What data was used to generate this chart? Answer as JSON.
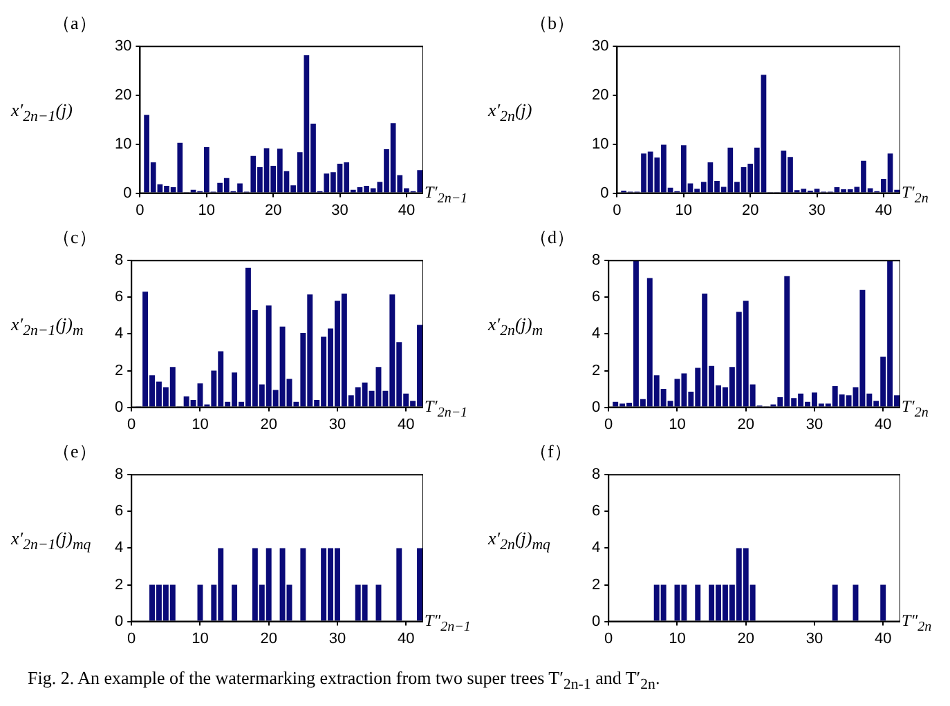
{
  "chart_data": [
    {
      "type": "bar",
      "title": "（a）",
      "ylabel": "x′$_{2n−1}$(j)",
      "xlabel": "T′$_{2n−1}$",
      "x": [
        1,
        2,
        3,
        4,
        5,
        6,
        7,
        8,
        9,
        10,
        11,
        12,
        13,
        14,
        15,
        16,
        17,
        18,
        19,
        20,
        21,
        22,
        23,
        24,
        25,
        26,
        27,
        28,
        29,
        30,
        31,
        32,
        33,
        34,
        35,
        36,
        37,
        38,
        39,
        40,
        41,
        42
      ],
      "series": [
        {
          "color": "#0a0a78",
          "values": [
            16,
            6.3,
            1.8,
            1.5,
            1.2,
            10.3,
            0.2,
            0.7,
            0.4,
            9.4,
            0.3,
            2.1,
            3.1,
            0.4,
            2.0,
            0.3,
            7.6,
            5.3,
            9.2,
            5.6,
            9.1,
            4.5,
            1.6,
            8.4,
            28.2,
            14.2,
            0.4,
            4.0,
            4.3,
            6.0,
            6.3,
            0.7,
            1.2,
            1.5,
            1.0,
            2.3,
            9.0,
            14.3,
            3.7,
            1.0,
            0.4,
            4.7
          ]
        }
      ],
      "xlim": [
        0,
        42.5
      ],
      "xticks": [
        0,
        10,
        20,
        30,
        40
      ],
      "ylim": [
        0,
        30
      ],
      "yticks": [
        0,
        10,
        20,
        30
      ]
    },
    {
      "type": "bar",
      "title": "（b）",
      "ylabel": "x′$_{2n}$(j)",
      "xlabel": "T′$_{2n}$",
      "x": [
        1,
        2,
        3,
        4,
        5,
        6,
        7,
        8,
        9,
        10,
        11,
        12,
        13,
        14,
        15,
        16,
        17,
        18,
        19,
        20,
        21,
        22,
        23,
        24,
        25,
        26,
        27,
        28,
        29,
        30,
        31,
        32,
        33,
        34,
        35,
        36,
        37,
        38,
        39,
        40,
        41,
        42
      ],
      "series": [
        {
          "color": "#0a0a78",
          "values": [
            0.5,
            0.3,
            0.3,
            8.1,
            8.5,
            7.3,
            9.9,
            1.1,
            0.4,
            9.8,
            2.0,
            0.9,
            2.3,
            6.3,
            2.5,
            1.3,
            9.3,
            2.3,
            5.3,
            6.0,
            9.3,
            24.2,
            0.2,
            0.2,
            8.7,
            7.4,
            0.6,
            0.9,
            0.5,
            0.9,
            0.3,
            0.3,
            1.2,
            0.8,
            0.8,
            1.3,
            6.6,
            1.0,
            0.4,
            2.9,
            8.1,
            0.7
          ]
        }
      ],
      "xlim": [
        0,
        42.5
      ],
      "xticks": [
        0,
        10,
        20,
        30,
        40
      ],
      "ylim": [
        0,
        30
      ],
      "yticks": [
        0,
        10,
        20,
        30
      ]
    },
    {
      "type": "bar",
      "title": "（c）",
      "ylabel": "x′$_{2n−1}$(j)$_{m}$",
      "xlabel": "T′$_{2n−1}$",
      "x": [
        1,
        2,
        3,
        4,
        5,
        6,
        7,
        8,
        9,
        10,
        11,
        12,
        13,
        14,
        15,
        16,
        17,
        18,
        19,
        20,
        21,
        22,
        23,
        24,
        25,
        26,
        27,
        28,
        29,
        30,
        31,
        32,
        33,
        34,
        35,
        36,
        37,
        38,
        39,
        40,
        41,
        42
      ],
      "series": [
        {
          "color": "#0a0a78",
          "values": [
            0.05,
            6.3,
            1.75,
            1.4,
            1.1,
            2.2,
            0.05,
            0.6,
            0.4,
            1.3,
            0.15,
            2.0,
            3.05,
            0.3,
            1.9,
            0.3,
            7.6,
            5.3,
            1.25,
            5.55,
            0.95,
            4.4,
            1.55,
            0.3,
            4.05,
            6.15,
            0.4,
            3.85,
            4.3,
            5.8,
            6.2,
            0.65,
            1.1,
            1.35,
            0.9,
            2.2,
            0.9,
            6.15,
            3.55,
            0.75,
            0.35,
            4.5
          ]
        }
      ],
      "xlim": [
        0,
        42.5
      ],
      "xticks": [
        0,
        10,
        20,
        30,
        40
      ],
      "ylim": [
        0,
        8
      ],
      "yticks": [
        0,
        2,
        4,
        6,
        8
      ]
    },
    {
      "type": "bar",
      "title": "（d）",
      "ylabel": "x′$_{2n}$(j)$_{m}$",
      "xlabel": "T′$_{2n}$",
      "x": [
        1,
        2,
        3,
        4,
        5,
        6,
        7,
        8,
        9,
        10,
        11,
        12,
        13,
        14,
        15,
        16,
        17,
        18,
        19,
        20,
        21,
        22,
        23,
        24,
        25,
        26,
        27,
        28,
        29,
        30,
        31,
        32,
        33,
        34,
        35,
        36,
        37,
        38,
        39,
        40,
        41,
        42
      ],
      "series": [
        {
          "color": "#0a0a78",
          "values": [
            0.3,
            0.2,
            0.25,
            8,
            0.45,
            7.05,
            1.75,
            1.0,
            0.35,
            1.55,
            1.85,
            0.85,
            2.15,
            6.2,
            2.25,
            1.2,
            1.1,
            2.2,
            5.2,
            5.8,
            1.25,
            0.1,
            0.05,
            0.15,
            0.55,
            7.15,
            0.5,
            0.75,
            0.3,
            0.8,
            0.2,
            0.2,
            1.15,
            0.7,
            0.65,
            1.1,
            6.4,
            0.75,
            0.35,
            2.75,
            8,
            0.65
          ]
        }
      ],
      "xlim": [
        0,
        42.5
      ],
      "xticks": [
        0,
        10,
        20,
        30,
        40
      ],
      "ylim": [
        0,
        8
      ],
      "yticks": [
        0,
        2,
        4,
        6,
        8
      ]
    },
    {
      "type": "bar",
      "title": "（e）",
      "ylabel": "x′$_{2n−1}$(j)$_{mq}$",
      "xlabel": "T″$_{2n−1}$",
      "x": [
        3,
        4,
        5,
        6,
        10,
        12,
        13,
        15,
        18,
        19,
        20,
        22,
        23,
        25,
        28,
        29,
        30,
        33,
        34,
        36,
        39,
        42
      ],
      "series": [
        {
          "color": "#0a0a78",
          "values": [
            2,
            2,
            2,
            2,
            2,
            2,
            4,
            2,
            4,
            2,
            4,
            4,
            2,
            4,
            4,
            4,
            4,
            2,
            2,
            2,
            4,
            4
          ]
        }
      ],
      "xlim": [
        0,
        42.5
      ],
      "xticks": [
        0,
        10,
        20,
        30,
        40
      ],
      "ylim": [
        0,
        8
      ],
      "yticks": [
        0,
        2,
        4,
        6,
        8
      ]
    },
    {
      "type": "bar",
      "title": "（f）",
      "ylabel": "x′$_{2n}$(j)$_{mq}$",
      "xlabel": "T″$_{2n}$",
      "x": [
        7,
        8,
        10,
        11,
        13,
        15,
        16,
        17,
        18,
        19,
        20,
        21,
        33,
        36,
        40
      ],
      "series": [
        {
          "color": "#0a0a78",
          "values": [
            2,
            2,
            2,
            2,
            2,
            2,
            2,
            2,
            2,
            4,
            4,
            2,
            2,
            2,
            2
          ]
        }
      ],
      "xlim": [
        0,
        42.5
      ],
      "xticks": [
        0,
        10,
        20,
        30,
        40
      ],
      "ylim": [
        0,
        8
      ],
      "yticks": [
        0,
        2,
        4,
        6,
        8
      ],
      "annotations": [
        "Fig. 2. An example of the watermarking extraction from two super trees T′$_{2n-1}$ and T′$_{2n}$."
      ]
    }
  ]
}
